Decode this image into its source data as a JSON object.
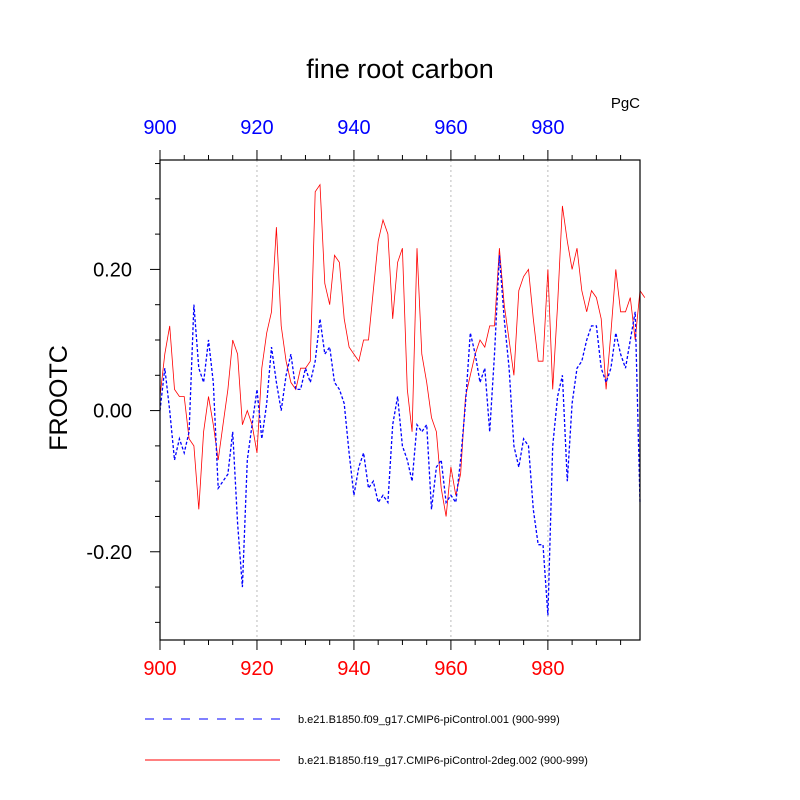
{
  "chart_data": {
    "type": "line",
    "title": "fine root carbon",
    "units": "PgC",
    "ylabel": "FROOTC",
    "xlim": [
      900,
      999
    ],
    "ylim": [
      -0.325,
      0.355
    ],
    "x_ticks": [
      900,
      920,
      940,
      960,
      980
    ],
    "y_ticks": [
      0.2,
      0.0,
      -0.2
    ],
    "y_tick_labels": [
      "0.20",
      "0.00",
      "-0.20"
    ],
    "top_axis_color": "#0000ff",
    "bottom_axis_color": "#ff0000",
    "grid": "vertical dotted at major x ticks",
    "legend": "bottom",
    "series": [
      {
        "name": "b.e21.B1850.f09_g17.CMIP6-piControl.001 (900-999)",
        "color": "#0000ff",
        "style": "dashed",
        "x_start": 900,
        "values": [
          0.0,
          0.06,
          0.0,
          -0.07,
          -0.04,
          -0.06,
          -0.03,
          0.15,
          0.06,
          0.04,
          0.1,
          0.04,
          -0.11,
          -0.1,
          -0.09,
          -0.03,
          -0.16,
          -0.25,
          -0.07,
          -0.02,
          0.03,
          -0.04,
          0.01,
          0.09,
          0.04,
          0.0,
          0.05,
          0.08,
          0.03,
          0.03,
          0.06,
          0.04,
          0.07,
          0.13,
          0.08,
          0.09,
          0.04,
          0.03,
          0.01,
          -0.06,
          -0.12,
          -0.08,
          -0.06,
          -0.11,
          -0.1,
          -0.13,
          -0.12,
          -0.13,
          -0.02,
          0.02,
          -0.05,
          -0.07,
          -0.1,
          -0.02,
          -0.03,
          -0.02,
          -0.14,
          -0.08,
          -0.07,
          -0.13,
          -0.12,
          -0.13,
          -0.07,
          0.01,
          0.11,
          0.08,
          0.04,
          0.06,
          -0.03,
          0.08,
          0.22,
          0.13,
          0.06,
          -0.05,
          -0.08,
          -0.04,
          -0.05,
          -0.14,
          -0.19,
          -0.19,
          -0.29,
          -0.05,
          0.02,
          0.05,
          -0.1,
          0.01,
          0.06,
          0.07,
          0.1,
          0.12,
          0.12,
          0.06,
          0.04,
          0.06,
          0.11,
          0.08,
          0.06,
          0.1,
          0.14,
          -0.13
        ]
      },
      {
        "name": "b.e21.B1850.f19_g17.CMIP6-piControl-2deg.002 (900-999)",
        "color": "#ff0000",
        "style": "solid",
        "x_start": 900,
        "values": [
          0.02,
          0.08,
          0.12,
          0.03,
          0.02,
          0.02,
          -0.04,
          -0.05,
          -0.14,
          -0.03,
          0.02,
          -0.02,
          -0.07,
          -0.02,
          0.03,
          0.1,
          0.08,
          -0.02,
          0.0,
          -0.02,
          -0.06,
          0.06,
          0.11,
          0.14,
          0.26,
          0.12,
          0.07,
          0.04,
          0.03,
          0.06,
          0.06,
          0.07,
          0.31,
          0.32,
          0.18,
          0.15,
          0.22,
          0.21,
          0.13,
          0.09,
          0.08,
          0.07,
          0.1,
          0.1,
          0.17,
          0.24,
          0.27,
          0.25,
          0.13,
          0.21,
          0.23,
          0.03,
          -0.03,
          0.23,
          0.08,
          0.04,
          -0.01,
          -0.03,
          -0.11,
          -0.15,
          -0.08,
          -0.12,
          -0.09,
          0.02,
          0.05,
          0.08,
          0.1,
          0.09,
          0.12,
          0.12,
          0.23,
          0.15,
          0.1,
          0.05,
          0.17,
          0.19,
          0.2,
          0.13,
          0.07,
          0.07,
          0.2,
          0.03,
          0.15,
          0.29,
          0.24,
          0.2,
          0.23,
          0.17,
          0.14,
          0.17,
          0.16,
          0.13,
          0.03,
          0.11,
          0.2,
          0.14,
          0.14,
          0.16,
          0.1,
          0.17,
          0.16
        ]
      }
    ]
  }
}
